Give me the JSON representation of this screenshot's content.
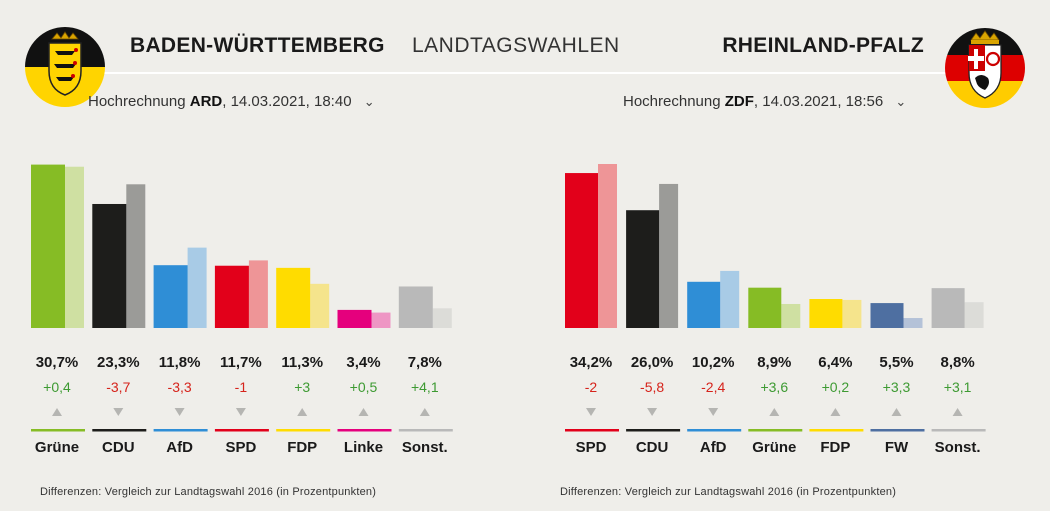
{
  "header": {
    "title_left": "BADEN-WÜRTTEMBERG",
    "title_middle": "LANDTAGSWAHLEN",
    "title_right": "RHEINLAND-PFALZ"
  },
  "colors": {
    "Grüne": "#86bc25",
    "CDU": "#1d1d1b",
    "AfD": "#2f8ed6",
    "SPD": "#e2001a",
    "FDP": "#ffdc00",
    "Linke": "#e5007d",
    "Sonst.": "#b9b9b9",
    "FW": "#4e6fa1",
    "positive": "#3d9a32",
    "negative": "#d6231b"
  },
  "chart_data": [
    {
      "type": "bar",
      "state": "BADEN-WÜRTTEMBERG",
      "source_prefix": "Hochrechnung",
      "source_broadcaster": "ARD",
      "source_date": ", 14.03.2021, 18:40",
      "categories": [
        "Grüne",
        "CDU",
        "AfD",
        "SPD",
        "FDP",
        "Linke",
        "Sonst."
      ],
      "series": [
        {
          "values": [
            30.7,
            23.3,
            11.8,
            11.7,
            11.3,
            3.4,
            7.8
          ]
        },
        {
          "values": [
            30.3,
            27.0,
            15.1,
            12.7,
            8.3,
            2.9,
            3.7
          ]
        }
      ],
      "value_labels": [
        "30,7%",
        "23,3%",
        "11,8%",
        "11,7%",
        "11,3%",
        "3,4%",
        "7,8%"
      ],
      "diff_labels": [
        "+0,4",
        "-3,7",
        "-3,3",
        "-1",
        "+3",
        "+0,5",
        "+4,1"
      ],
      "diff_signs": [
        1,
        -1,
        -1,
        -1,
        1,
        1,
        1
      ],
      "ylim": [
        0,
        31
      ],
      "note": "Differenzen: Vergleich zur Landtagswahl 2016 (in Prozentpunkten)"
    },
    {
      "type": "bar",
      "state": "RHEINLAND-PFALZ",
      "source_prefix": "Hochrechnung",
      "source_broadcaster": "ZDF",
      "source_date": ", 14.03.2021, 18:56",
      "categories": [
        "SPD",
        "CDU",
        "AfD",
        "Grüne",
        "FDP",
        "FW",
        "Sonst."
      ],
      "series": [
        {
          "values": [
            34.2,
            26.0,
            10.2,
            8.9,
            6.4,
            5.5,
            8.8
          ]
        },
        {
          "values": [
            36.2,
            31.8,
            12.6,
            5.3,
            6.2,
            2.2,
            5.7
          ]
        }
      ],
      "value_labels": [
        "34,2%",
        "26,0%",
        "10,2%",
        "8,9%",
        "6,4%",
        "5,5%",
        "8,8%"
      ],
      "diff_labels": [
        "-2",
        "-5,8",
        "-2,4",
        "+3,6",
        "+0,2",
        "+3,3",
        "+3,1"
      ],
      "diff_signs": [
        -1,
        -1,
        -1,
        1,
        1,
        1,
        1
      ],
      "ylim": [
        0,
        36.2
      ],
      "note": "Differenzen: Vergleich zur Landtagswahl 2016 (in Prozentpunkten)"
    }
  ]
}
